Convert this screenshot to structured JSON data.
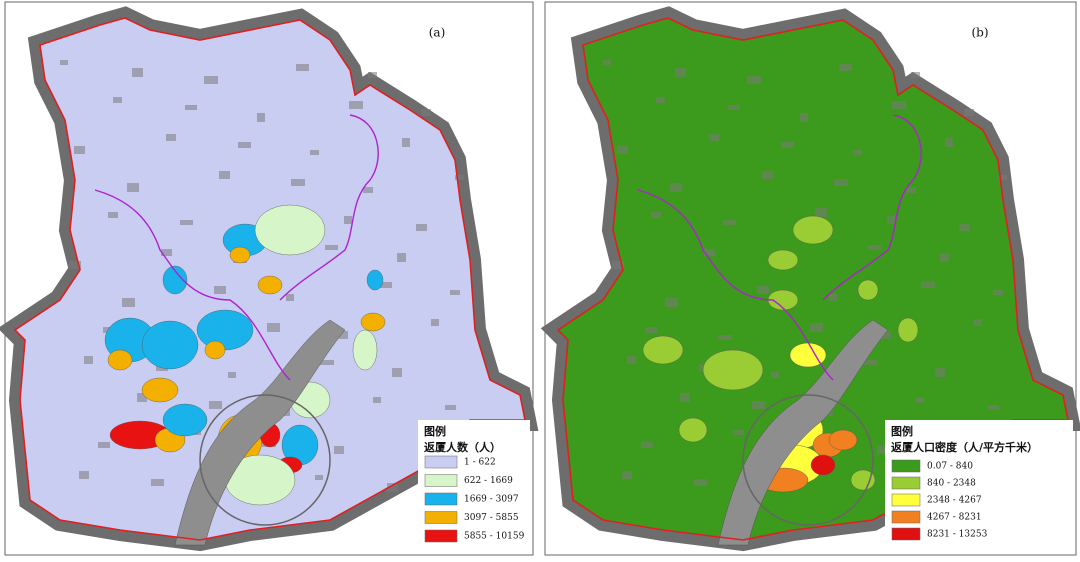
{
  "panels": [
    {
      "label": "(a)",
      "legend": {
        "title": "图例",
        "subtitle": "返厦人数（人）",
        "items": [
          {
            "label": "1 - 622",
            "color": "#c9cdf2"
          },
          {
            "label": "622 - 1669",
            "color": "#d6f5c9"
          },
          {
            "label": "1669 - 3097",
            "color": "#19b2ea"
          },
          {
            "label": "3097 - 5855",
            "color": "#f4b000"
          },
          {
            "label": "5855 - 10159",
            "color": "#e81212"
          }
        ]
      }
    },
    {
      "label": "(b)",
      "legend": {
        "title": "图例",
        "subtitle": "返厦人口密度（人/平方千米）",
        "items": [
          {
            "label": "0.07 - 840",
            "color": "#3c9a1c"
          },
          {
            "label": "840 - 2348",
            "color": "#9acc34"
          },
          {
            "label": "2348 - 4267",
            "color": "#ffff3c"
          },
          {
            "label": "4267 - 8231",
            "color": "#f08020"
          },
          {
            "label": "8231 - 13253",
            "color": "#e01010"
          }
        ]
      }
    }
  ]
}
